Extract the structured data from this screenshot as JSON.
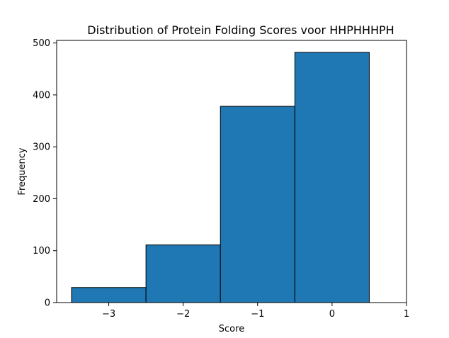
{
  "chart_data": {
    "type": "bar",
    "title": "Distribution of Protein Folding Scores voor HHPHHHPH",
    "xlabel": "Score",
    "ylabel": "Frequency",
    "bins": [
      {
        "start": -3.5,
        "end": -2.5,
        "value": 29
      },
      {
        "start": -2.5,
        "end": -1.5,
        "value": 111
      },
      {
        "start": -1.5,
        "end": -0.5,
        "value": 378
      },
      {
        "start": -0.5,
        "end": 0.5,
        "value": 482
      }
    ],
    "xlim": [
      -3.7,
      1.0
    ],
    "ylim": [
      0,
      505
    ],
    "xticks": [
      -3,
      -2,
      -1,
      0,
      1
    ],
    "xtick_labels": [
      "−3",
      "−2",
      "−1",
      "0",
      "1"
    ],
    "yticks": [
      0,
      100,
      200,
      300,
      400,
      500
    ],
    "ytick_labels": [
      "0",
      "100",
      "200",
      "300",
      "400",
      "500"
    ],
    "grid": false,
    "colors": {
      "bar_fill": "#1f77b4",
      "bar_edge": "#000000",
      "axes": "#000000"
    }
  }
}
